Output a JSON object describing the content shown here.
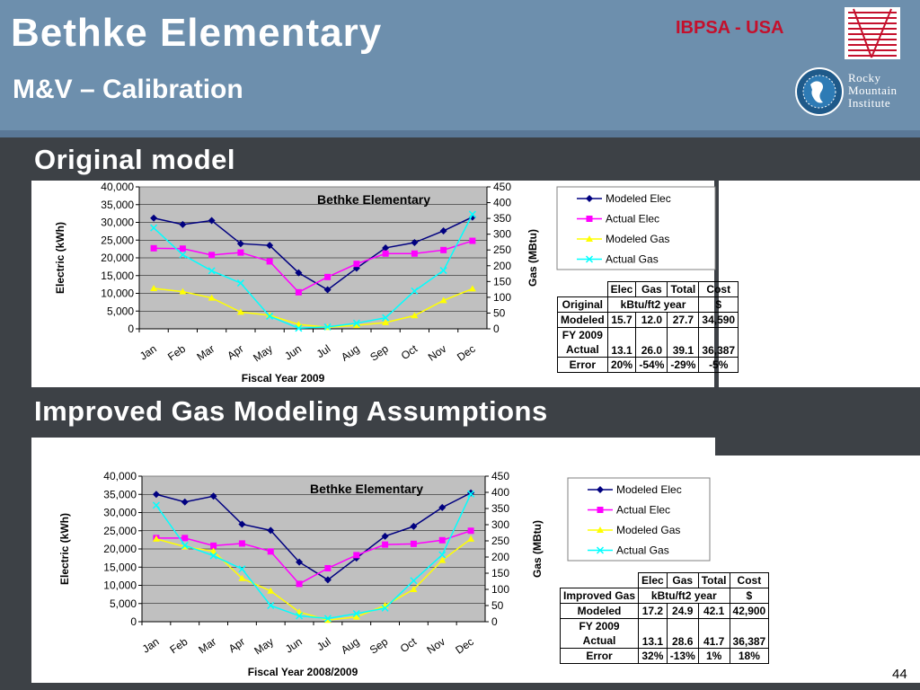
{
  "header": {
    "title_line1": "Bethke Elementary",
    "title_line2": "M&V – Calibration",
    "org_tag": "IBPSA - USA",
    "rmi_logo_text": [
      "Rocky",
      "Mountain",
      "Institute"
    ]
  },
  "sections": [
    {
      "title": "Original model"
    },
    {
      "title": "Improved Gas Modeling Assumptions"
    }
  ],
  "page_number": "44",
  "colors": {
    "header_bg": "#6d8fad",
    "band_bg": "#3d4146",
    "plot_bg": "#c0c0c0",
    "modeled_elec": "#000080",
    "actual_elec": "#ff00ff",
    "modeled_gas": "#ffff00",
    "actual_gas": "#00ffff",
    "org_tag": "#c4102c"
  },
  "chart_data": [
    {
      "type": "line",
      "title": "Bethke Elementary",
      "xlabel": "Fiscal Year 2009",
      "ylabel": "Electric (kWh)",
      "y2label": "Gas (MBtu)",
      "categories": [
        "Jan",
        "Feb",
        "Mar",
        "Apr",
        "May",
        "Jun",
        "Jul",
        "Aug",
        "Sep",
        "Oct",
        "Nov",
        "Dec"
      ],
      "ylim": [
        0,
        40000
      ],
      "y2lim": [
        0,
        450
      ],
      "yticks": [
        "0",
        "5,000",
        "10,000",
        "15,000",
        "20,000",
        "25,000",
        "30,000",
        "35,000",
        "40,000"
      ],
      "y2ticks": [
        "0",
        "50",
        "100",
        "150",
        "200",
        "250",
        "300",
        "350",
        "400",
        "450"
      ],
      "grid": true,
      "legend": "right",
      "series": [
        {
          "name": "Modeled Elec",
          "axis": "left",
          "marker": "diamond",
          "values": [
            31200,
            29400,
            30500,
            24000,
            23500,
            15800,
            11000,
            17100,
            22800,
            24300,
            27600,
            31500
          ]
        },
        {
          "name": "Actual Elec",
          "axis": "left",
          "marker": "square",
          "values": [
            22700,
            22600,
            20800,
            21500,
            19000,
            10300,
            14600,
            18300,
            21200,
            21200,
            22200,
            24800
          ]
        },
        {
          "name": "Modeled Gas",
          "axis": "right",
          "marker": "triangle",
          "values": [
            128,
            118,
            98,
            53,
            43,
            14,
            5,
            11,
            20,
            42,
            90,
            127
          ]
        },
        {
          "name": "Actual Gas",
          "axis": "right",
          "marker": "x",
          "values": [
            320,
            235,
            184,
            145,
            40,
            2,
            6,
            18,
            35,
            120,
            185,
            363
          ]
        }
      ]
    },
    {
      "type": "line",
      "title": "Bethke Elementary",
      "xlabel": "Fiscal Year 2008/2009",
      "ylabel": "Electric (kWh)",
      "y2label": "Gas (MBtu)",
      "categories": [
        "Jan",
        "Feb",
        "Mar",
        "Apr",
        "May",
        "Jun",
        "Jul",
        "Aug",
        "Sep",
        "Oct",
        "Nov",
        "Dec"
      ],
      "ylim": [
        0,
        40000
      ],
      "y2lim": [
        0,
        450
      ],
      "yticks": [
        "0",
        "5,000",
        "10,000",
        "15,000",
        "20,000",
        "25,000",
        "30,000",
        "35,000",
        "40,000"
      ],
      "y2ticks": [
        "0",
        "50",
        "100",
        "150",
        "200",
        "250",
        "300",
        "350",
        "400",
        "450"
      ],
      "grid": true,
      "legend": "right",
      "series": [
        {
          "name": "Modeled Elec",
          "axis": "left",
          "marker": "diamond",
          "values": [
            35000,
            32900,
            34500,
            26800,
            25100,
            16400,
            11500,
            17500,
            23500,
            26200,
            31400,
            35400
          ]
        },
        {
          "name": "Actual Elec",
          "axis": "left",
          "marker": "square",
          "values": [
            23000,
            23000,
            20900,
            21500,
            19300,
            10400,
            14700,
            18300,
            21200,
            21400,
            22400,
            25000
          ]
        },
        {
          "name": "Modeled Gas",
          "axis": "right",
          "marker": "triangle",
          "values": [
            256,
            232,
            218,
            134,
            95,
            30,
            5,
            15,
            50,
            100,
            190,
            256
          ]
        },
        {
          "name": "Actual Gas",
          "axis": "right",
          "marker": "x",
          "values": [
            360,
            236,
            204,
            163,
            50,
            18,
            10,
            25,
            42,
            127,
            207,
            395
          ]
        }
      ]
    }
  ],
  "tables": [
    {
      "col_headers": [
        "Elec",
        "Gas",
        "Total",
        "Cost"
      ],
      "label": "Original",
      "units": [
        "kBtu/ft2 year",
        "$"
      ],
      "modeled": {
        "label": "Modeled",
        "values": [
          "15.7",
          "12.0",
          "27.7",
          "34,590"
        ]
      },
      "actual": {
        "label1": "FY 2009",
        "label2": "Actual",
        "values": [
          "13.1",
          "26.0",
          "39.1",
          "36,387"
        ]
      },
      "error": {
        "label": "Error",
        "values": [
          "20%",
          "-54%",
          "-29%",
          "-5%"
        ]
      }
    },
    {
      "col_headers": [
        "Elec",
        "Gas",
        "Total",
        "Cost"
      ],
      "label": "Improved Gas",
      "units": [
        "kBtu/ft2 year",
        "$"
      ],
      "modeled": {
        "label": "Modeled",
        "values": [
          "17.2",
          "24.9",
          "42.1",
          "42,900"
        ]
      },
      "actual": {
        "label1": "FY 2009",
        "label2": "Actual",
        "values": [
          "13.1",
          "28.6",
          "41.7",
          "36,387"
        ]
      },
      "error": {
        "label": "Error",
        "values": [
          "32%",
          "-13%",
          "1%",
          "18%"
        ]
      }
    }
  ]
}
